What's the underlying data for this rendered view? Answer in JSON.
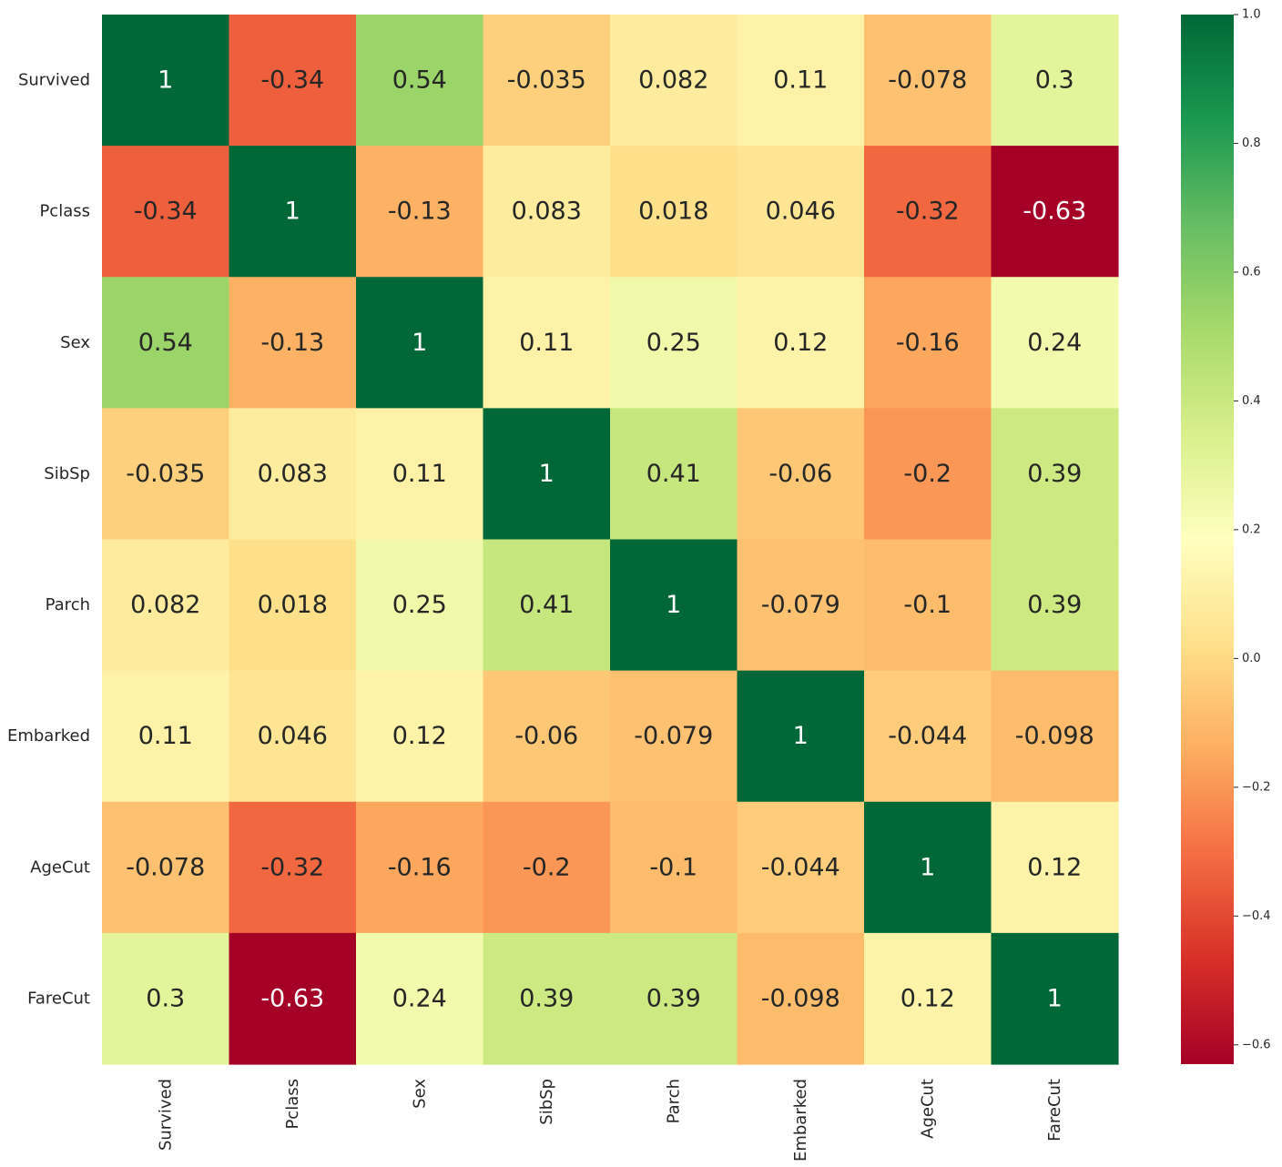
{
  "chart_data": {
    "type": "heatmap",
    "title": "",
    "xlabel": "",
    "ylabel": "",
    "rows": [
      "Survived",
      "Pclass",
      "Sex",
      "SibSp",
      "Parch",
      "Embarked",
      "AgeCut",
      "FareCut"
    ],
    "columns": [
      "Survived",
      "Pclass",
      "Sex",
      "SibSp",
      "Parch",
      "Embarked",
      "AgeCut",
      "FareCut"
    ],
    "values": [
      [
        1,
        -0.34,
        0.54,
        -0.035,
        0.082,
        0.11,
        -0.078,
        0.3
      ],
      [
        -0.34,
        1,
        -0.13,
        0.083,
        0.018,
        0.046,
        -0.32,
        -0.63
      ],
      [
        0.54,
        -0.13,
        1,
        0.11,
        0.25,
        0.12,
        -0.16,
        0.24
      ],
      [
        -0.035,
        0.083,
        0.11,
        1,
        0.41,
        -0.06,
        -0.2,
        0.39
      ],
      [
        0.082,
        0.018,
        0.25,
        0.41,
        1,
        -0.079,
        -0.1,
        0.39
      ],
      [
        0.11,
        0.046,
        0.12,
        -0.06,
        -0.079,
        1,
        -0.044,
        -0.098
      ],
      [
        -0.078,
        -0.32,
        -0.16,
        -0.2,
        -0.1,
        -0.044,
        1,
        0.12
      ],
      [
        0.3,
        -0.63,
        0.24,
        0.39,
        0.39,
        -0.098,
        0.12,
        1
      ]
    ],
    "labels": [
      [
        "1",
        "-0.34",
        "0.54",
        "-0.035",
        "0.082",
        "0.11",
        "-0.078",
        "0.3"
      ],
      [
        "-0.34",
        "1",
        "-0.13",
        "0.083",
        "0.018",
        "0.046",
        "-0.32",
        "-0.63"
      ],
      [
        "0.54",
        "-0.13",
        "1",
        "0.11",
        "0.25",
        "0.12",
        "-0.16",
        "0.24"
      ],
      [
        "-0.035",
        "0.083",
        "0.11",
        "1",
        "0.41",
        "-0.06",
        "-0.2",
        "0.39"
      ],
      [
        "0.082",
        "0.018",
        "0.25",
        "0.41",
        "1",
        "-0.079",
        "-0.1",
        "0.39"
      ],
      [
        "0.11",
        "0.046",
        "0.12",
        "-0.06",
        "-0.079",
        "1",
        "-0.044",
        "-0.098"
      ],
      [
        "-0.078",
        "-0.32",
        "-0.16",
        "-0.2",
        "-0.1",
        "-0.044",
        "1",
        "0.12"
      ],
      [
        "0.3",
        "-0.63",
        "0.24",
        "0.39",
        "0.39",
        "-0.098",
        "0.12",
        "1"
      ]
    ],
    "colormap": "RdYlGn",
    "color_range": [
      -0.63,
      1.0
    ],
    "colorbar": {
      "ticks": [
        1.0,
        0.8,
        0.6,
        0.4,
        0.2,
        0.0,
        -0.2,
        -0.4,
        -0.6
      ],
      "tick_labels": [
        "1.0",
        "0.8",
        "0.6",
        "0.4",
        "0.2",
        "0.0",
        "−0.2",
        "−0.4",
        "−0.6"
      ]
    }
  }
}
